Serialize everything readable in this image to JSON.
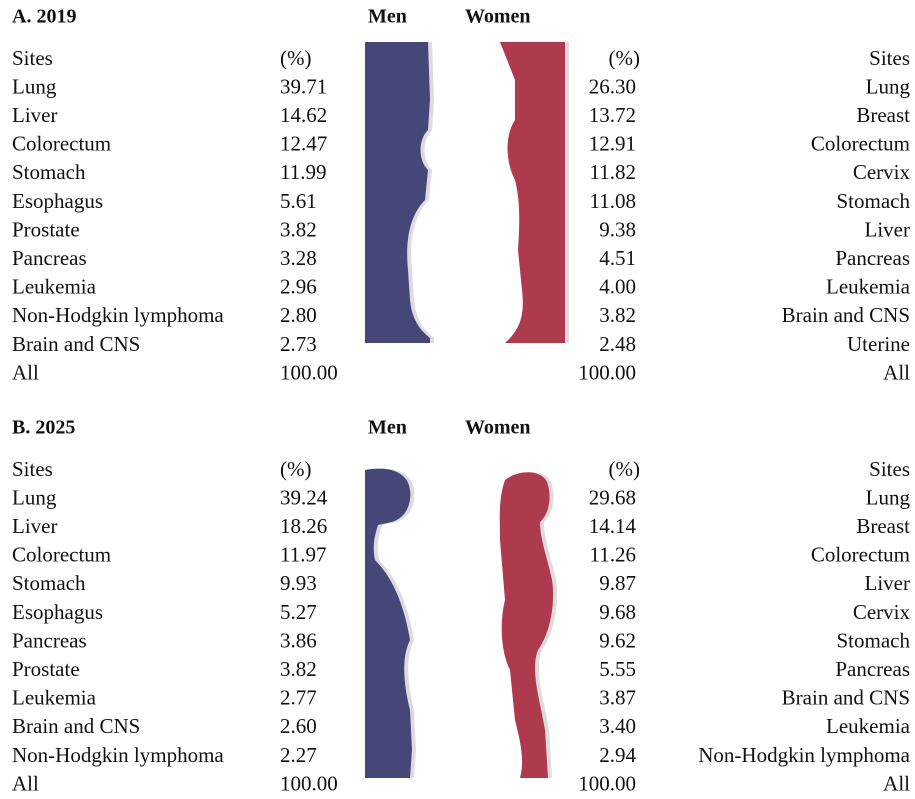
{
  "panels": [
    {
      "title": "A. 2019",
      "men_label": "Men",
      "women_label": "Women",
      "men": {
        "header": [
          "Sites",
          "(%)"
        ],
        "rows": [
          [
            "Lung",
            "39.71"
          ],
          [
            "Liver",
            "14.62"
          ],
          [
            "Colorectum",
            "12.47"
          ],
          [
            "Stomach",
            "11.99"
          ],
          [
            "Esophagus",
            "5.61"
          ],
          [
            "Prostate",
            "3.82"
          ],
          [
            "Pancreas",
            "3.28"
          ],
          [
            "Leukemia",
            "2.96"
          ],
          [
            "Non-Hodgkin lymphoma",
            "2.80"
          ],
          [
            "Brain and CNS",
            "2.73"
          ],
          [
            "All",
            "100.00"
          ]
        ]
      },
      "women": {
        "header": [
          "Sites",
          "(%)"
        ],
        "rows": [
          [
            "Lung",
            "26.30"
          ],
          [
            "Breast",
            "13.72"
          ],
          [
            "Colorectum",
            "12.91"
          ],
          [
            "Cervix",
            "11.82"
          ],
          [
            "Stomach",
            "11.08"
          ],
          [
            "Liver",
            "9.38"
          ],
          [
            "Pancreas",
            "4.51"
          ],
          [
            "Leukemia",
            "4.00"
          ],
          [
            "Brain and CNS",
            "3.82"
          ],
          [
            "Uterine",
            "2.48"
          ],
          [
            "All",
            "100.00"
          ]
        ]
      }
    },
    {
      "title": "B. 2025",
      "men_label": "Men",
      "women_label": "Women",
      "men": {
        "header": [
          "Sites",
          "(%)"
        ],
        "rows": [
          [
            "Lung",
            "39.24"
          ],
          [
            "Liver",
            "18.26"
          ],
          [
            "Colorectum",
            "11.97"
          ],
          [
            "Stomach",
            "9.93"
          ],
          [
            "Esophagus",
            "5.27"
          ],
          [
            "Pancreas",
            "3.86"
          ],
          [
            "Prostate",
            "3.82"
          ],
          [
            "Leukemia",
            "2.77"
          ],
          [
            "Brain and CNS",
            "2.60"
          ],
          [
            "Non-Hodgkin lymphoma",
            "2.27"
          ],
          [
            "All",
            "100.00"
          ]
        ]
      },
      "women": {
        "header": [
          "Sites",
          "(%)"
        ],
        "rows": [
          [
            "Lung",
            "29.68"
          ],
          [
            "Breast",
            "14.14"
          ],
          [
            "Colorectum",
            "11.26"
          ],
          [
            "Liver",
            "9.87"
          ],
          [
            "Cervix",
            "9.68"
          ],
          [
            "Stomach",
            "9.62"
          ],
          [
            "Pancreas",
            "5.55"
          ],
          [
            "Brain and CNS",
            "3.87"
          ],
          [
            "Leukemia",
            "3.40"
          ],
          [
            "Non-Hodgkin lymphoma",
            "2.94"
          ],
          [
            "All",
            "100.00"
          ]
        ]
      }
    }
  ]
}
